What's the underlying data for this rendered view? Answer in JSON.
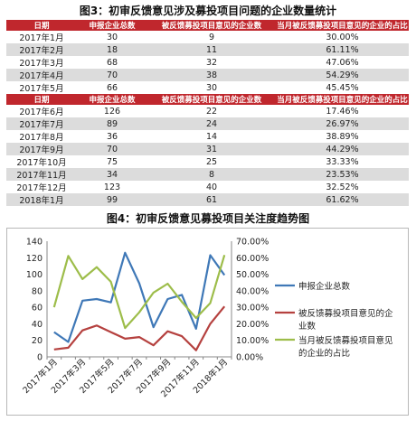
{
  "figure3": {
    "title": "图3：初审反馈意见涉及募投项目问题的企业数量统计",
    "headers": [
      "日期",
      "申报企业总数",
      "被反馈募投项目意见的企业数",
      "当月被反馈募投项目意见的企业的占比"
    ],
    "rows": [
      [
        "2017年1月",
        "30",
        "9",
        "30.00%"
      ],
      [
        "2017年2月",
        "18",
        "11",
        "61.11%"
      ],
      [
        "2017年3月",
        "68",
        "32",
        "47.06%"
      ],
      [
        "2017年4月",
        "70",
        "38",
        "54.29%"
      ],
      [
        "2017年5月",
        "66",
        "30",
        "45.45%"
      ],
      [
        "日期",
        "申报企业总数",
        "被反馈募投项目意见的企业数",
        "当月被反馈募投项目意见的企业的占比"
      ],
      [
        "2017年6月",
        "126",
        "22",
        "17.46%"
      ],
      [
        "2017年7月",
        "89",
        "24",
        "26.97%"
      ],
      [
        "2017年8月",
        "36",
        "14",
        "38.89%"
      ],
      [
        "2017年9月",
        "70",
        "31",
        "44.29%"
      ],
      [
        "2017年10月",
        "75",
        "25",
        "33.33%"
      ],
      [
        "2017年11月",
        "34",
        "8",
        "23.53%"
      ],
      [
        "2017年12月",
        "123",
        "40",
        "32.52%"
      ],
      [
        "2018年1月",
        "99",
        "61",
        "61.62%"
      ]
    ]
  },
  "figure4": {
    "title": "图4：初审反馈意见募投项目关注度趋势图"
  },
  "chart_data": {
    "type": "line",
    "title": "图4：初审反馈意见募投项目关注度趋势图",
    "x": [
      "2017年1月",
      "2017年2月",
      "2017年3月",
      "2017年4月",
      "2017年5月",
      "2017年6月",
      "2017年7月",
      "2017年8月",
      "2017年9月",
      "2017年10月",
      "2017年11月",
      "2017年12月",
      "2018年1月"
    ],
    "x_tick_labels": [
      "2017年1月",
      "2017年3月",
      "2017年5月",
      "2017年7月",
      "2017年9月",
      "2017年11月",
      "2018年1月"
    ],
    "series": [
      {
        "name": "申报企业总数",
        "axis": "left",
        "color": "#3f78b7",
        "values": [
          30,
          18,
          68,
          70,
          66,
          126,
          89,
          36,
          70,
          75,
          34,
          123,
          99
        ]
      },
      {
        "name": "被反馈募投项目意见的企业数",
        "axis": "left",
        "color": "#b5413f",
        "values": [
          9,
          11,
          32,
          38,
          30,
          22,
          24,
          14,
          31,
          25,
          8,
          40,
          61
        ]
      },
      {
        "name": "当月被反馈募投项目意见的企业的占比",
        "axis": "right",
        "color": "#9dbd4a",
        "values": [
          30.0,
          61.11,
          47.06,
          54.29,
          45.45,
          17.46,
          26.97,
          38.89,
          44.29,
          33.33,
          23.53,
          32.52,
          61.62
        ]
      }
    ],
    "y_left": {
      "ylim": [
        0,
        140
      ],
      "ticks": [
        "0",
        "20",
        "40",
        "60",
        "80",
        "100",
        "120",
        "140"
      ]
    },
    "y_right": {
      "ylim": [
        0,
        70
      ],
      "ticks": [
        "0.00%",
        "10.00%",
        "20.00%",
        "30.00%",
        "40.00%",
        "50.00%",
        "60.00%",
        "70.00%"
      ]
    },
    "legend": [
      {
        "lines": [
          "申报企业总数"
        ]
      },
      {
        "lines": [
          "被反馈募投项目意见的企",
          "业数"
        ]
      },
      {
        "lines": [
          "当月被反馈募投项目意见",
          "的企业的占比"
        ]
      }
    ],
    "legend_position": "right",
    "grid": false
  }
}
